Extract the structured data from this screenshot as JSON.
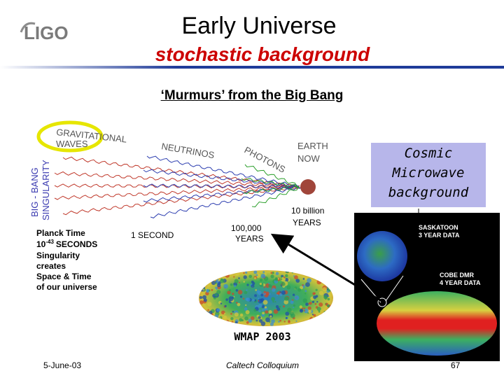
{
  "colors": {
    "accent_red": "#cc0000",
    "rule_blue": "#1f3b99",
    "cmb_box": "#b7b6ea",
    "wave_red": "#c0392b",
    "wave_blue": "#2e3fb0",
    "wave_green": "#2ea02e",
    "earth": "#a0453a"
  },
  "header": {
    "logo_text": "LIGO",
    "title": "Early Universe",
    "subtitle": "stochastic  background"
  },
  "main": {
    "murmurs": "‘Murmurs’ from the Big Bang",
    "diagram": {
      "gravitational_l1": "GRAVITATIONAL",
      "gravitational_l2": "WAVES",
      "neutrinos": "NEUTRINOS",
      "photons": "PHOTONS",
      "earth_l1": "EARTH",
      "earth_l2": "NOW",
      "singularity_l1": "BIG - BANG",
      "singularity_l2": "SINGULARITY",
      "ten_billion_l1": "10 billion",
      "ten_billion_l2": "YEARS",
      "hundred_k_l1": "100,000",
      "hundred_k_l2": "YEARS",
      "one_second": "1 SECOND",
      "planck_l1": "Planck Time",
      "planck_l2a": "10",
      "planck_l2sup": "-43",
      "planck_l2b": "SECONDS",
      "planck_l3": "Singularity",
      "planck_l4": "creates",
      "planck_l5": "Space & Time",
      "planck_l6": "of our universe"
    },
    "cmb": {
      "line1": "Cosmic",
      "line2": "Microwave",
      "line3": "background"
    },
    "cobe": {
      "saskatoon_l1": "SASKATOON",
      "saskatoon_l2": "3 YEAR DATA",
      "cobe_l1": "COBE DMR",
      "cobe_l2": "4 YEAR DATA"
    },
    "wmap_label": "WMAP 2003"
  },
  "footer": {
    "date": "5-June-03",
    "center": "Caltech Colloquium",
    "page": "67"
  }
}
